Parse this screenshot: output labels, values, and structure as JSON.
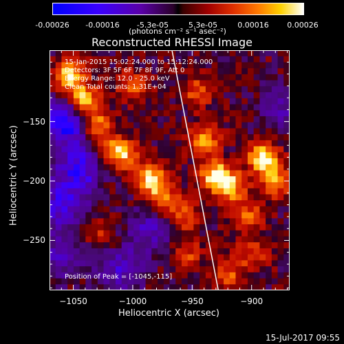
{
  "colorbar": {
    "ticks": [
      "-0.00026",
      "-0.00016",
      "-5.3e-05",
      "5.3e-05",
      "0.00016",
      "0.00026"
    ],
    "unit": "(photons cm⁻² s⁻¹ asec⁻²)"
  },
  "chart_data": {
    "type": "heatmap",
    "title": "Reconstructed RHESSI Image",
    "xlabel": "Heliocentric X (arcsec)",
    "ylabel": "Heliocentric Y (arcsec)",
    "xlim": [
      -1070,
      -868
    ],
    "ylim": [
      -292,
      -90
    ],
    "xticks": [
      -1050,
      -1000,
      -950,
      -900
    ],
    "yticks": [
      -150,
      -200,
      -250
    ],
    "xtick_labels": [
      "−1050",
      "−1000",
      "−950",
      "−900"
    ],
    "ytick_labels": [
      "−150",
      "−200",
      "−250"
    ],
    "value_range": [
      -0.00026,
      0.00026
    ],
    "colormap": "blue-purple-black-red-orange-yellow-white",
    "bright_sources": [
      {
        "x": -1053,
        "y": -112,
        "v": 1.0
      },
      {
        "x": -1041,
        "y": -133,
        "v": 0.95
      },
      {
        "x": -1030,
        "y": -152,
        "v": 0.75
      },
      {
        "x": -1018,
        "y": -175,
        "v": 0.6
      },
      {
        "x": -985,
        "y": -198,
        "v": 0.85
      },
      {
        "x": -975,
        "y": -215,
        "v": 0.7
      },
      {
        "x": -958,
        "y": -230,
        "v": 0.55
      },
      {
        "x": -940,
        "y": -165,
        "v": 0.7
      },
      {
        "x": -930,
        "y": -195,
        "v": 0.95
      },
      {
        "x": -918,
        "y": -205,
        "v": 0.8
      },
      {
        "x": -890,
        "y": -180,
        "v": 1.0
      },
      {
        "x": -880,
        "y": -200,
        "v": 0.75
      },
      {
        "x": -903,
        "y": -230,
        "v": 0.55
      },
      {
        "x": -955,
        "y": -262,
        "v": 0.45
      },
      {
        "x": -920,
        "y": -278,
        "v": 0.5
      },
      {
        "x": -1000,
        "y": -120,
        "v": 0.5
      },
      {
        "x": -945,
        "y": -125,
        "v": 0.5
      },
      {
        "x": -1005,
        "y": -178,
        "v": 0.55
      },
      {
        "x": -1028,
        "y": -245,
        "v": 0.35
      },
      {
        "x": -900,
        "y": -262,
        "v": 0.45
      }
    ],
    "dark_regions": [
      {
        "x": -1055,
        "y": -150,
        "v": -0.9
      },
      {
        "x": -1045,
        "y": -190,
        "v": -0.7
      },
      {
        "x": -1060,
        "y": -220,
        "v": -0.6
      },
      {
        "x": -1010,
        "y": -275,
        "v": -0.5
      },
      {
        "x": -985,
        "y": -240,
        "v": -0.45
      },
      {
        "x": -875,
        "y": -140,
        "v": -0.35
      },
      {
        "x": -1062,
        "y": -265,
        "v": -0.4
      }
    ],
    "limb_line": {
      "x0": -967,
      "y0": -90,
      "x1": -928,
      "y1": -292
    },
    "info_lines": [
      "15-Jan-2015 15:02:24.000 to 15:12:24.000",
      "Detectors: 3F 5F 6F 7F 8F 9F, Att 0",
      "Energy Range: 12.0 - 25.0 keV",
      "Clean      Total counts: 1.31E+04"
    ],
    "peak_text": "Position of Peak = [-1045,-115]"
  },
  "timestamp": "15-Jul-2017 09:55"
}
